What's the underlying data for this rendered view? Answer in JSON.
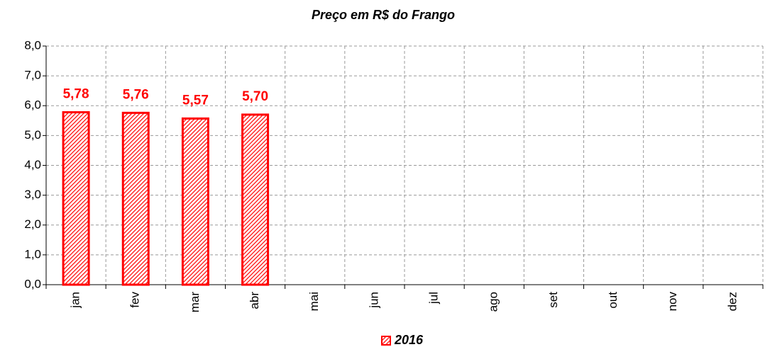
{
  "chart_data": {
    "type": "bar",
    "title": "Preço em R$ do Frango",
    "categories": [
      "jan",
      "fev",
      "mar",
      "abr",
      "mai",
      "jun",
      "jul",
      "ago",
      "set",
      "out",
      "nov",
      "dez"
    ],
    "series": [
      {
        "name": "2016",
        "color": "#ff0000",
        "values": [
          5.78,
          5.76,
          5.57,
          5.7,
          null,
          null,
          null,
          null,
          null,
          null,
          null,
          null
        ],
        "value_labels": [
          "5,78",
          "5,76",
          "5,57",
          "5,70",
          null,
          null,
          null,
          null,
          null,
          null,
          null,
          null
        ]
      }
    ],
    "ylim": [
      0,
      8
    ],
    "yticks": [
      {
        "value": 0,
        "label": "0,0"
      },
      {
        "value": 1,
        "label": "1,0"
      },
      {
        "value": 2,
        "label": "2,0"
      },
      {
        "value": 3,
        "label": "3,0"
      },
      {
        "value": 4,
        "label": "4,0"
      },
      {
        "value": 5,
        "label": "5,0"
      },
      {
        "value": 6,
        "label": "6,0"
      },
      {
        "value": 7,
        "label": "7,0"
      },
      {
        "value": 8,
        "label": "8,0"
      }
    ],
    "grid": true,
    "legend": "bottom"
  }
}
